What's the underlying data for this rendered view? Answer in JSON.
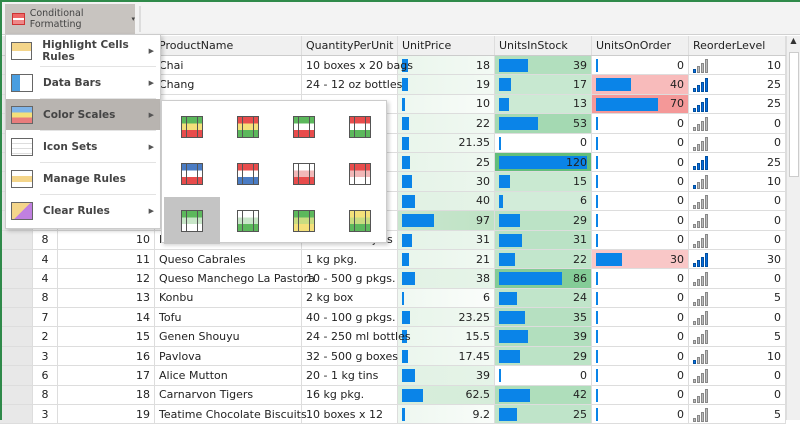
{
  "toolbar": {
    "conditional_formatting_label": "Conditional Formatting",
    "dropdown_glyph": "▾"
  },
  "menu": {
    "items": [
      {
        "label": "Highlight Cells Rules",
        "icon": "highlight-cells-icon",
        "submenu": true
      },
      {
        "label": "Data Bars",
        "icon": "data-bars-icon",
        "submenu": true
      },
      {
        "label": "Color Scales",
        "icon": "color-scales-icon",
        "submenu": true,
        "highlighted": true
      },
      {
        "label": "Icon Sets",
        "icon": "icon-sets-icon",
        "submenu": true
      },
      {
        "label": "Manage Rules",
        "icon": "manage-rules-icon",
        "submenu": false
      },
      {
        "label": "Clear Rules",
        "icon": "clear-rules-icon",
        "submenu": true
      }
    ],
    "submenu_arrow": "▶"
  },
  "color_scales": [
    [
      "#5cb85c",
      "#f4e07a",
      "#e84c4c"
    ],
    [
      "#e84c4c",
      "#f4e07a",
      "#5cb85c"
    ],
    [
      "#5cb85c",
      "#ffffff",
      "#e84c4c"
    ],
    [
      "#e84c4c",
      "#ffffff",
      "#5cb85c"
    ],
    [
      "#4a7cc4",
      "#ffffff",
      "#e84c4c"
    ],
    [
      "#e84c4c",
      "#ffffff",
      "#4a7cc4"
    ],
    [
      "#ffffff",
      "#f2b8b8",
      "#e84c4c"
    ],
    [
      "#e84c4c",
      "#f2b8b8",
      "#ffffff"
    ],
    [
      "#5cb85c",
      "#c8e6c8",
      "#ffffff"
    ],
    [
      "#ffffff",
      "#c8e6c8",
      "#5cb85c"
    ],
    [
      "#5cb85c",
      "#c8dc80",
      "#f4e07a"
    ],
    [
      "#f4e07a",
      "#c8dc80",
      "#5cb85c"
    ]
  ],
  "selected_scale": 8,
  "colors": {
    "bar": "#0a84e8",
    "green": "#63be7b",
    "red": "#f07a7a",
    "price_scale": "#a8d8b0"
  },
  "table": {
    "columns": [
      "",
      "",
      "ProductName",
      "QuantityPerUnit",
      "UnitPrice",
      "UnitsInStock",
      "UnitsOnOrder",
      "ReorderLevel"
    ],
    "rows": [
      [
        "",
        "",
        "Chai",
        "10 boxes x 20 bags",
        "18",
        "39",
        "0",
        "10"
      ],
      [
        "",
        "",
        "Chang",
        "24 - 12 oz bottles",
        "19",
        "17",
        "40",
        "25"
      ],
      [
        "",
        "",
        "",
        "",
        "10",
        "13",
        "70",
        "25"
      ],
      [
        "",
        "",
        "",
        "",
        "22",
        "53",
        "0",
        "0"
      ],
      [
        "",
        "",
        "",
        "",
        "21.35",
        "0",
        "0",
        "0"
      ],
      [
        "",
        "",
        "",
        "",
        "25",
        "120",
        "0",
        "25"
      ],
      [
        "",
        "",
        "",
        "",
        "30",
        "15",
        "0",
        "10"
      ],
      [
        "",
        "",
        "",
        "",
        "40",
        "6",
        "0",
        "0"
      ],
      [
        "",
        "",
        "",
        "",
        "97",
        "29",
        "0",
        "0"
      ],
      [
        "8",
        "10",
        "Ikura",
        "12 - 200 ml jars",
        "31",
        "31",
        "0",
        "0"
      ],
      [
        "4",
        "11",
        "Queso Cabrales",
        "1 kg pkg.",
        "21",
        "22",
        "30",
        "30"
      ],
      [
        "4",
        "12",
        "Queso Manchego La Pastora",
        "10 - 500 g pkgs.",
        "38",
        "86",
        "0",
        "0"
      ],
      [
        "8",
        "13",
        "Konbu",
        "2 kg box",
        "6",
        "24",
        "0",
        "5"
      ],
      [
        "7",
        "14",
        "Tofu",
        "40 - 100 g pkgs.",
        "23.25",
        "35",
        "0",
        "0"
      ],
      [
        "2",
        "15",
        "Genen Shouyu",
        "24 - 250 ml bottles",
        "15.5",
        "39",
        "0",
        "5"
      ],
      [
        "3",
        "16",
        "Pavlova",
        "32 - 500 g boxes",
        "17.45",
        "29",
        "0",
        "10"
      ],
      [
        "6",
        "17",
        "Alice Mutton",
        "20 - 1 kg tins",
        "39",
        "0",
        "0",
        "0"
      ],
      [
        "8",
        "18",
        "Carnarvon Tigers",
        "16 kg pkg.",
        "62.5",
        "42",
        "0",
        "0"
      ],
      [
        "3",
        "19",
        "Teatime Chocolate Biscuits",
        "10 boxes x 12",
        "9.2",
        "25",
        "0",
        "5"
      ]
    ]
  },
  "scrollbar": {
    "up_glyph": "▲"
  }
}
